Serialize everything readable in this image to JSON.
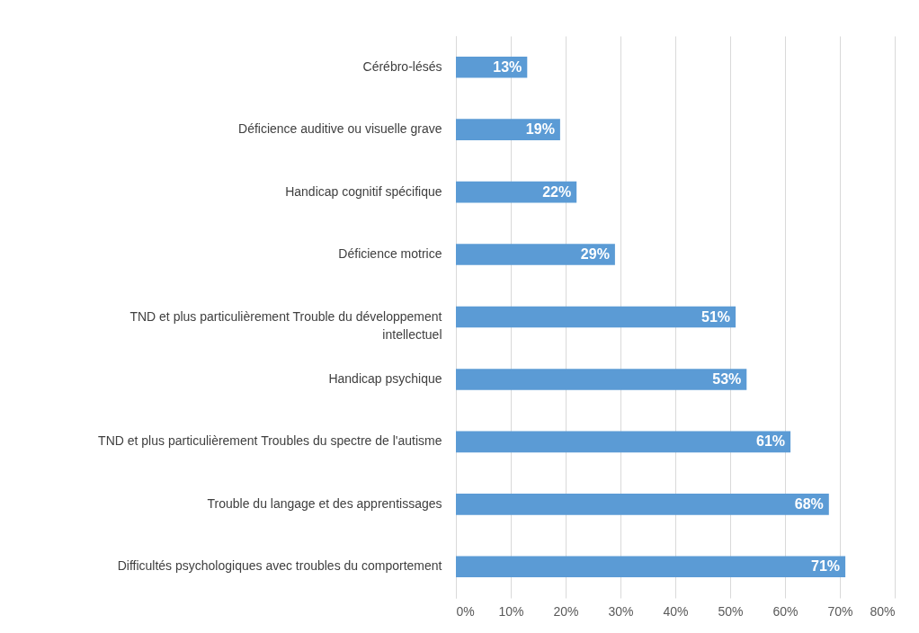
{
  "chart_data": {
    "type": "bar",
    "orientation": "horizontal",
    "categories": [
      "Cérébro-lésés",
      "Déficience auditive ou visuelle grave",
      "Handicap cognitif spécifique",
      "Déficience motrice",
      "TND et plus particulièrement Trouble du développement intellectuel",
      "Handicap psychique",
      "TND et plus particulièrement Troubles du spectre de l'autisme",
      "Trouble du langage et des apprentissages",
      "Difficultés psychologiques avec troubles du comportement"
    ],
    "values": [
      13,
      19,
      22,
      29,
      51,
      53,
      61,
      68,
      71
    ],
    "value_labels": [
      "13%",
      "19%",
      "22%",
      "29%",
      "51%",
      "53%",
      "61%",
      "68%",
      "71%"
    ],
    "color": "#5b9bd5",
    "xlim": [
      0,
      80
    ],
    "xticks": [
      {
        "value": 0,
        "label": "0%"
      },
      {
        "value": 10,
        "label": "10%"
      },
      {
        "value": 20,
        "label": "20%"
      },
      {
        "value": 30,
        "label": "30%"
      },
      {
        "value": 40,
        "label": "40%"
      },
      {
        "value": 50,
        "label": "50%"
      },
      {
        "value": 60,
        "label": "60%"
      },
      {
        "value": 70,
        "label": "70%"
      },
      {
        "value": 80,
        "label": "80%"
      }
    ],
    "grid": "x"
  }
}
